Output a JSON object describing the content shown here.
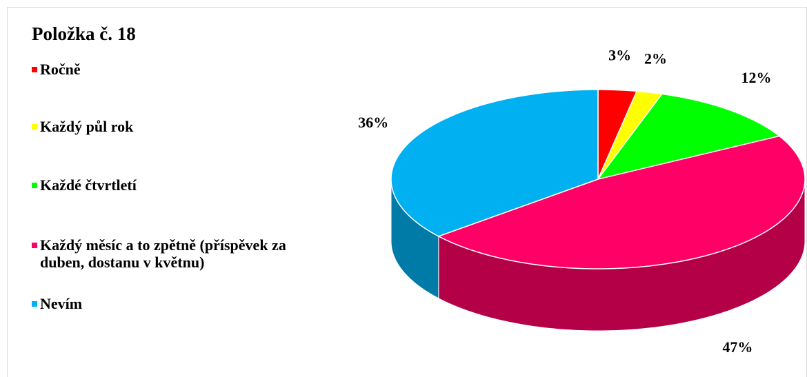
{
  "chart_data": {
    "type": "pie",
    "title": "Položka č. 18",
    "categories": [
      "Ročně",
      "Každý půl rok",
      "Každé čtvrtletí",
      "Každý měsíc a to zpětně (příspěvek za duben, dostanu v květnu)",
      "Nevím"
    ],
    "values": [
      3,
      2,
      12,
      47,
      36
    ],
    "value_labels": [
      "3%",
      "2%",
      "12%",
      "47%",
      "36%"
    ],
    "colors": [
      "#ff0000",
      "#ffff00",
      "#00ff00",
      "#ff0066",
      "#00b0f0"
    ],
    "legend": "left"
  }
}
